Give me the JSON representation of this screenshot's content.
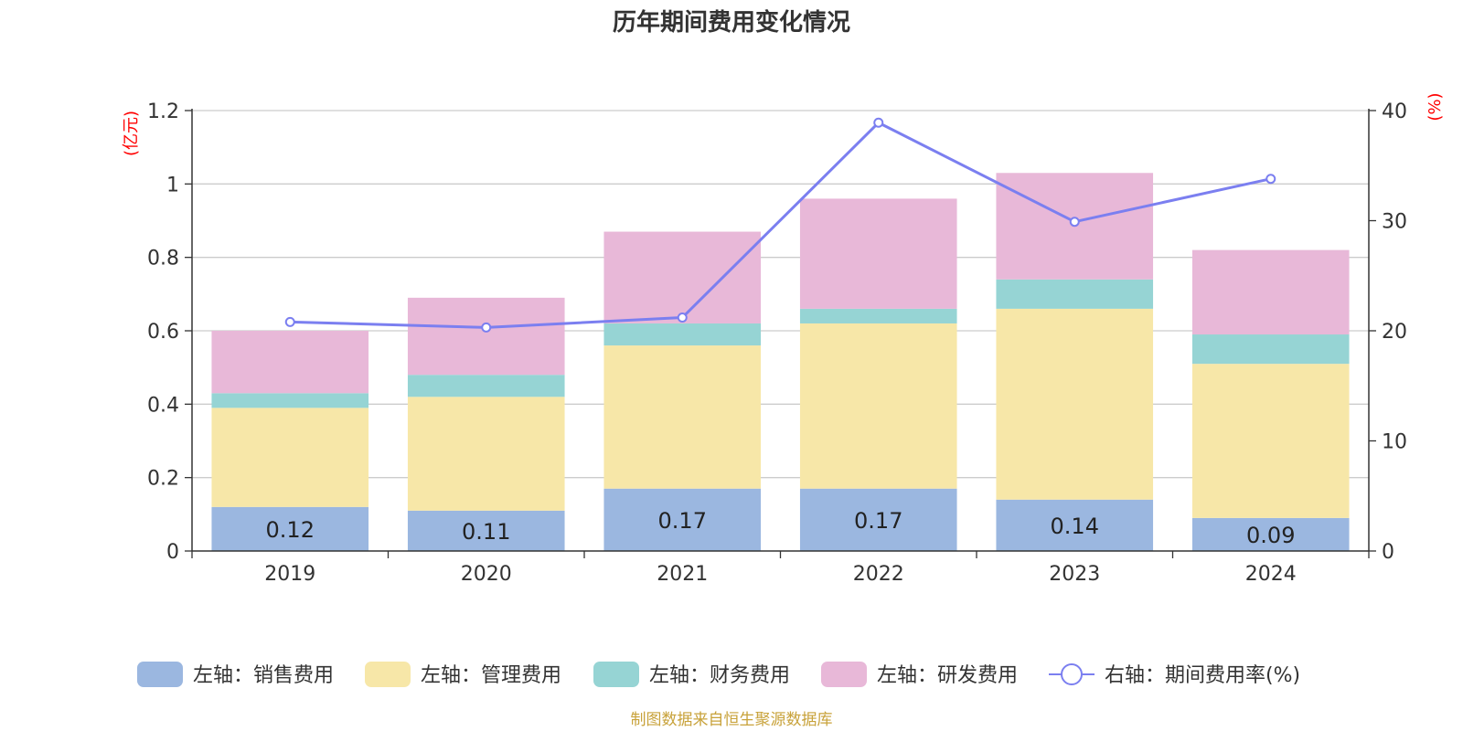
{
  "chart_data": {
    "type": "bar",
    "title": "历年期间费用变化情况",
    "categories": [
      "2019",
      "2020",
      "2021",
      "2022",
      "2023",
      "2024"
    ],
    "left_axis": {
      "unit": "(亿元)",
      "ylim": [
        0,
        1.2
      ],
      "ticks": [
        "0",
        "0.2",
        "0.4",
        "0.6",
        "0.8",
        "1",
        "1.2"
      ]
    },
    "right_axis": {
      "unit": "(%)",
      "ylim": [
        0,
        40
      ],
      "ticks": [
        "0",
        "10",
        "20",
        "30",
        "40"
      ]
    },
    "series": [
      {
        "name": "左轴：销售费用",
        "type": "bar",
        "axis": "left",
        "color": "#9bb7e0",
        "values": [
          0.12,
          0.11,
          0.17,
          0.17,
          0.14,
          0.09
        ],
        "labels": [
          "0.12",
          "0.11",
          "0.17",
          "0.17",
          "0.14",
          "0.09"
        ]
      },
      {
        "name": "左轴：管理费用",
        "type": "bar",
        "axis": "left",
        "color": "#f7e7a8",
        "values": [
          0.27,
          0.31,
          0.39,
          0.45,
          0.52,
          0.42
        ]
      },
      {
        "name": "左轴：财务费用",
        "type": "bar",
        "axis": "left",
        "color": "#96d4d4",
        "values": [
          0.04,
          0.06,
          0.06,
          0.04,
          0.08,
          0.08
        ]
      },
      {
        "name": "左轴：研发费用",
        "type": "bar",
        "axis": "left",
        "color": "#e8b8d8",
        "values": [
          0.17,
          0.21,
          0.25,
          0.3,
          0.29,
          0.23
        ]
      },
      {
        "name": "右轴：期间费用率(%)",
        "type": "line",
        "axis": "right",
        "color": "#7b7ff0",
        "values": [
          20.8,
          20.3,
          21.2,
          38.9,
          29.9,
          33.8
        ]
      }
    ],
    "grid": true,
    "legend_position": "bottom",
    "source": "制图数据来自恒生聚源数据库"
  }
}
